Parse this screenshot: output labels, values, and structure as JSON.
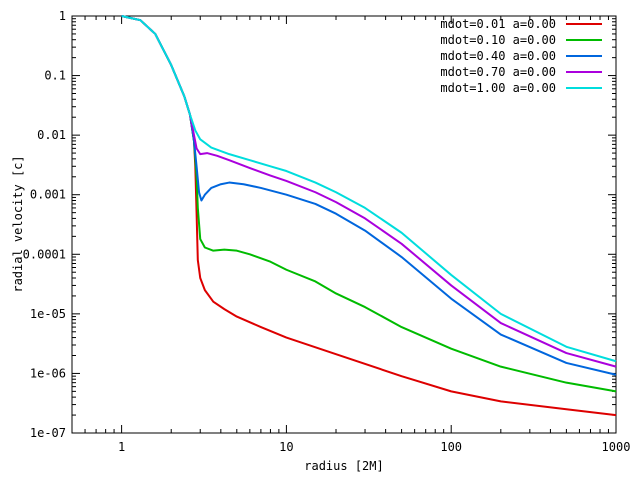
{
  "chart_data": {
    "type": "line",
    "xlabel": "radius [2M]",
    "ylabel": "radial velocity [c]",
    "x_scale": "log",
    "y_scale": "log",
    "xlim": [
      0.5,
      1000
    ],
    "ylim": [
      1e-07,
      1
    ],
    "grid": false,
    "legend_position": "top-right",
    "x_ticks": [
      {
        "value": 1,
        "label": "1"
      },
      {
        "value": 10,
        "label": "10"
      },
      {
        "value": 100,
        "label": "100"
      },
      {
        "value": 1000,
        "label": "1000"
      }
    ],
    "y_ticks": [
      {
        "value": 1,
        "label": "1"
      },
      {
        "value": 0.1,
        "label": "0.1"
      },
      {
        "value": 0.01,
        "label": "0.01"
      },
      {
        "value": 0.001,
        "label": "0.001"
      },
      {
        "value": 0.0001,
        "label": "0.0001"
      },
      {
        "value": 1e-05,
        "label": "1e-05"
      },
      {
        "value": 1e-06,
        "label": "1e-06"
      },
      {
        "value": 1e-07,
        "label": "1e-07"
      }
    ],
    "series": [
      {
        "name": "mdot=0.01 a=0.00",
        "color": "#dd0000",
        "points": [
          [
            1.0,
            1.0
          ],
          [
            1.3,
            0.85
          ],
          [
            1.6,
            0.5
          ],
          [
            2.0,
            0.15
          ],
          [
            2.4,
            0.045
          ],
          [
            2.6,
            0.022
          ],
          [
            2.75,
            0.008
          ],
          [
            2.8,
            0.003
          ],
          [
            2.85,
            0.0005
          ],
          [
            2.9,
            8e-05
          ],
          [
            3.0,
            4e-05
          ],
          [
            3.2,
            2.5e-05
          ],
          [
            3.6,
            1.6e-05
          ],
          [
            4.2,
            1.2e-05
          ],
          [
            5.0,
            9e-06
          ],
          [
            7.0,
            6e-06
          ],
          [
            10.0,
            4e-06
          ],
          [
            20.0,
            2.1e-06
          ],
          [
            50.0,
            9e-07
          ],
          [
            100.0,
            5e-07
          ],
          [
            200.0,
            3.4e-07
          ],
          [
            500.0,
            2.5e-07
          ],
          [
            1000.0,
            2e-07
          ]
        ]
      },
      {
        "name": "mdot=0.10 a=0.00",
        "color": "#00bb00",
        "points": [
          [
            1.0,
            1.0
          ],
          [
            1.3,
            0.85
          ],
          [
            1.6,
            0.5
          ],
          [
            2.0,
            0.15
          ],
          [
            2.4,
            0.045
          ],
          [
            2.6,
            0.022
          ],
          [
            2.75,
            0.008
          ],
          [
            2.85,
            0.002
          ],
          [
            2.9,
            0.0006
          ],
          [
            3.0,
            0.00018
          ],
          [
            3.2,
            0.00013
          ],
          [
            3.6,
            0.000115
          ],
          [
            4.2,
            0.00012
          ],
          [
            5.0,
            0.000115
          ],
          [
            6.0,
            0.0001
          ],
          [
            8.0,
            7.5e-05
          ],
          [
            10.0,
            5.5e-05
          ],
          [
            15.0,
            3.5e-05
          ],
          [
            20.0,
            2.2e-05
          ],
          [
            30.0,
            1.3e-05
          ],
          [
            50.0,
            6e-06
          ],
          [
            100.0,
            2.6e-06
          ],
          [
            200.0,
            1.3e-06
          ],
          [
            500.0,
            7e-07
          ],
          [
            1000.0,
            5e-07
          ]
        ]
      },
      {
        "name": "mdot=0.40 a=0.00",
        "color": "#0066dd",
        "points": [
          [
            1.0,
            1.0
          ],
          [
            1.3,
            0.85
          ],
          [
            1.6,
            0.5
          ],
          [
            2.0,
            0.15
          ],
          [
            2.4,
            0.045
          ],
          [
            2.6,
            0.022
          ],
          [
            2.75,
            0.008
          ],
          [
            2.85,
            0.003
          ],
          [
            2.95,
            0.0011
          ],
          [
            3.05,
            0.0008
          ],
          [
            3.2,
            0.001
          ],
          [
            3.5,
            0.0013
          ],
          [
            4.0,
            0.0015
          ],
          [
            4.5,
            0.0016
          ],
          [
            5.5,
            0.0015
          ],
          [
            7.0,
            0.0013
          ],
          [
            10.0,
            0.001
          ],
          [
            15.0,
            0.0007
          ],
          [
            20.0,
            0.00048
          ],
          [
            30.0,
            0.00025
          ],
          [
            50.0,
            9e-05
          ],
          [
            100.0,
            1.8e-05
          ],
          [
            200.0,
            4.5e-06
          ],
          [
            500.0,
            1.5e-06
          ],
          [
            1000.0,
            9.5e-07
          ]
        ]
      },
      {
        "name": "mdot=0.70 a=0.00",
        "color": "#aa00dd",
        "points": [
          [
            1.0,
            1.0
          ],
          [
            1.3,
            0.85
          ],
          [
            1.6,
            0.5
          ],
          [
            2.0,
            0.15
          ],
          [
            2.4,
            0.045
          ],
          [
            2.6,
            0.022
          ],
          [
            2.75,
            0.01
          ],
          [
            2.85,
            0.006
          ],
          [
            3.0,
            0.0048
          ],
          [
            3.3,
            0.005
          ],
          [
            3.8,
            0.0045
          ],
          [
            4.5,
            0.0038
          ],
          [
            6.0,
            0.0028
          ],
          [
            8.0,
            0.0021
          ],
          [
            10.0,
            0.0017
          ],
          [
            15.0,
            0.0011
          ],
          [
            20.0,
            0.00075
          ],
          [
            30.0,
            0.0004
          ],
          [
            50.0,
            0.00015
          ],
          [
            100.0,
            3e-05
          ],
          [
            200.0,
            7e-06
          ],
          [
            500.0,
            2.2e-06
          ],
          [
            1000.0,
            1.3e-06
          ]
        ]
      },
      {
        "name": "mdot=1.00 a=0.00",
        "color": "#00dddd",
        "points": [
          [
            1.0,
            1.0
          ],
          [
            1.3,
            0.85
          ],
          [
            1.6,
            0.5
          ],
          [
            2.0,
            0.15
          ],
          [
            2.4,
            0.045
          ],
          [
            2.6,
            0.022
          ],
          [
            2.8,
            0.012
          ],
          [
            3.0,
            0.0085
          ],
          [
            3.5,
            0.0062
          ],
          [
            4.5,
            0.0048
          ],
          [
            6.0,
            0.0038
          ],
          [
            8.0,
            0.003
          ],
          [
            10.0,
            0.0025
          ],
          [
            15.0,
            0.0016
          ],
          [
            20.0,
            0.0011
          ],
          [
            30.0,
            0.0006
          ],
          [
            50.0,
            0.00023
          ],
          [
            100.0,
            4.5e-05
          ],
          [
            200.0,
            1e-05
          ],
          [
            500.0,
            2.8e-06
          ],
          [
            1000.0,
            1.6e-06
          ]
        ]
      }
    ]
  }
}
